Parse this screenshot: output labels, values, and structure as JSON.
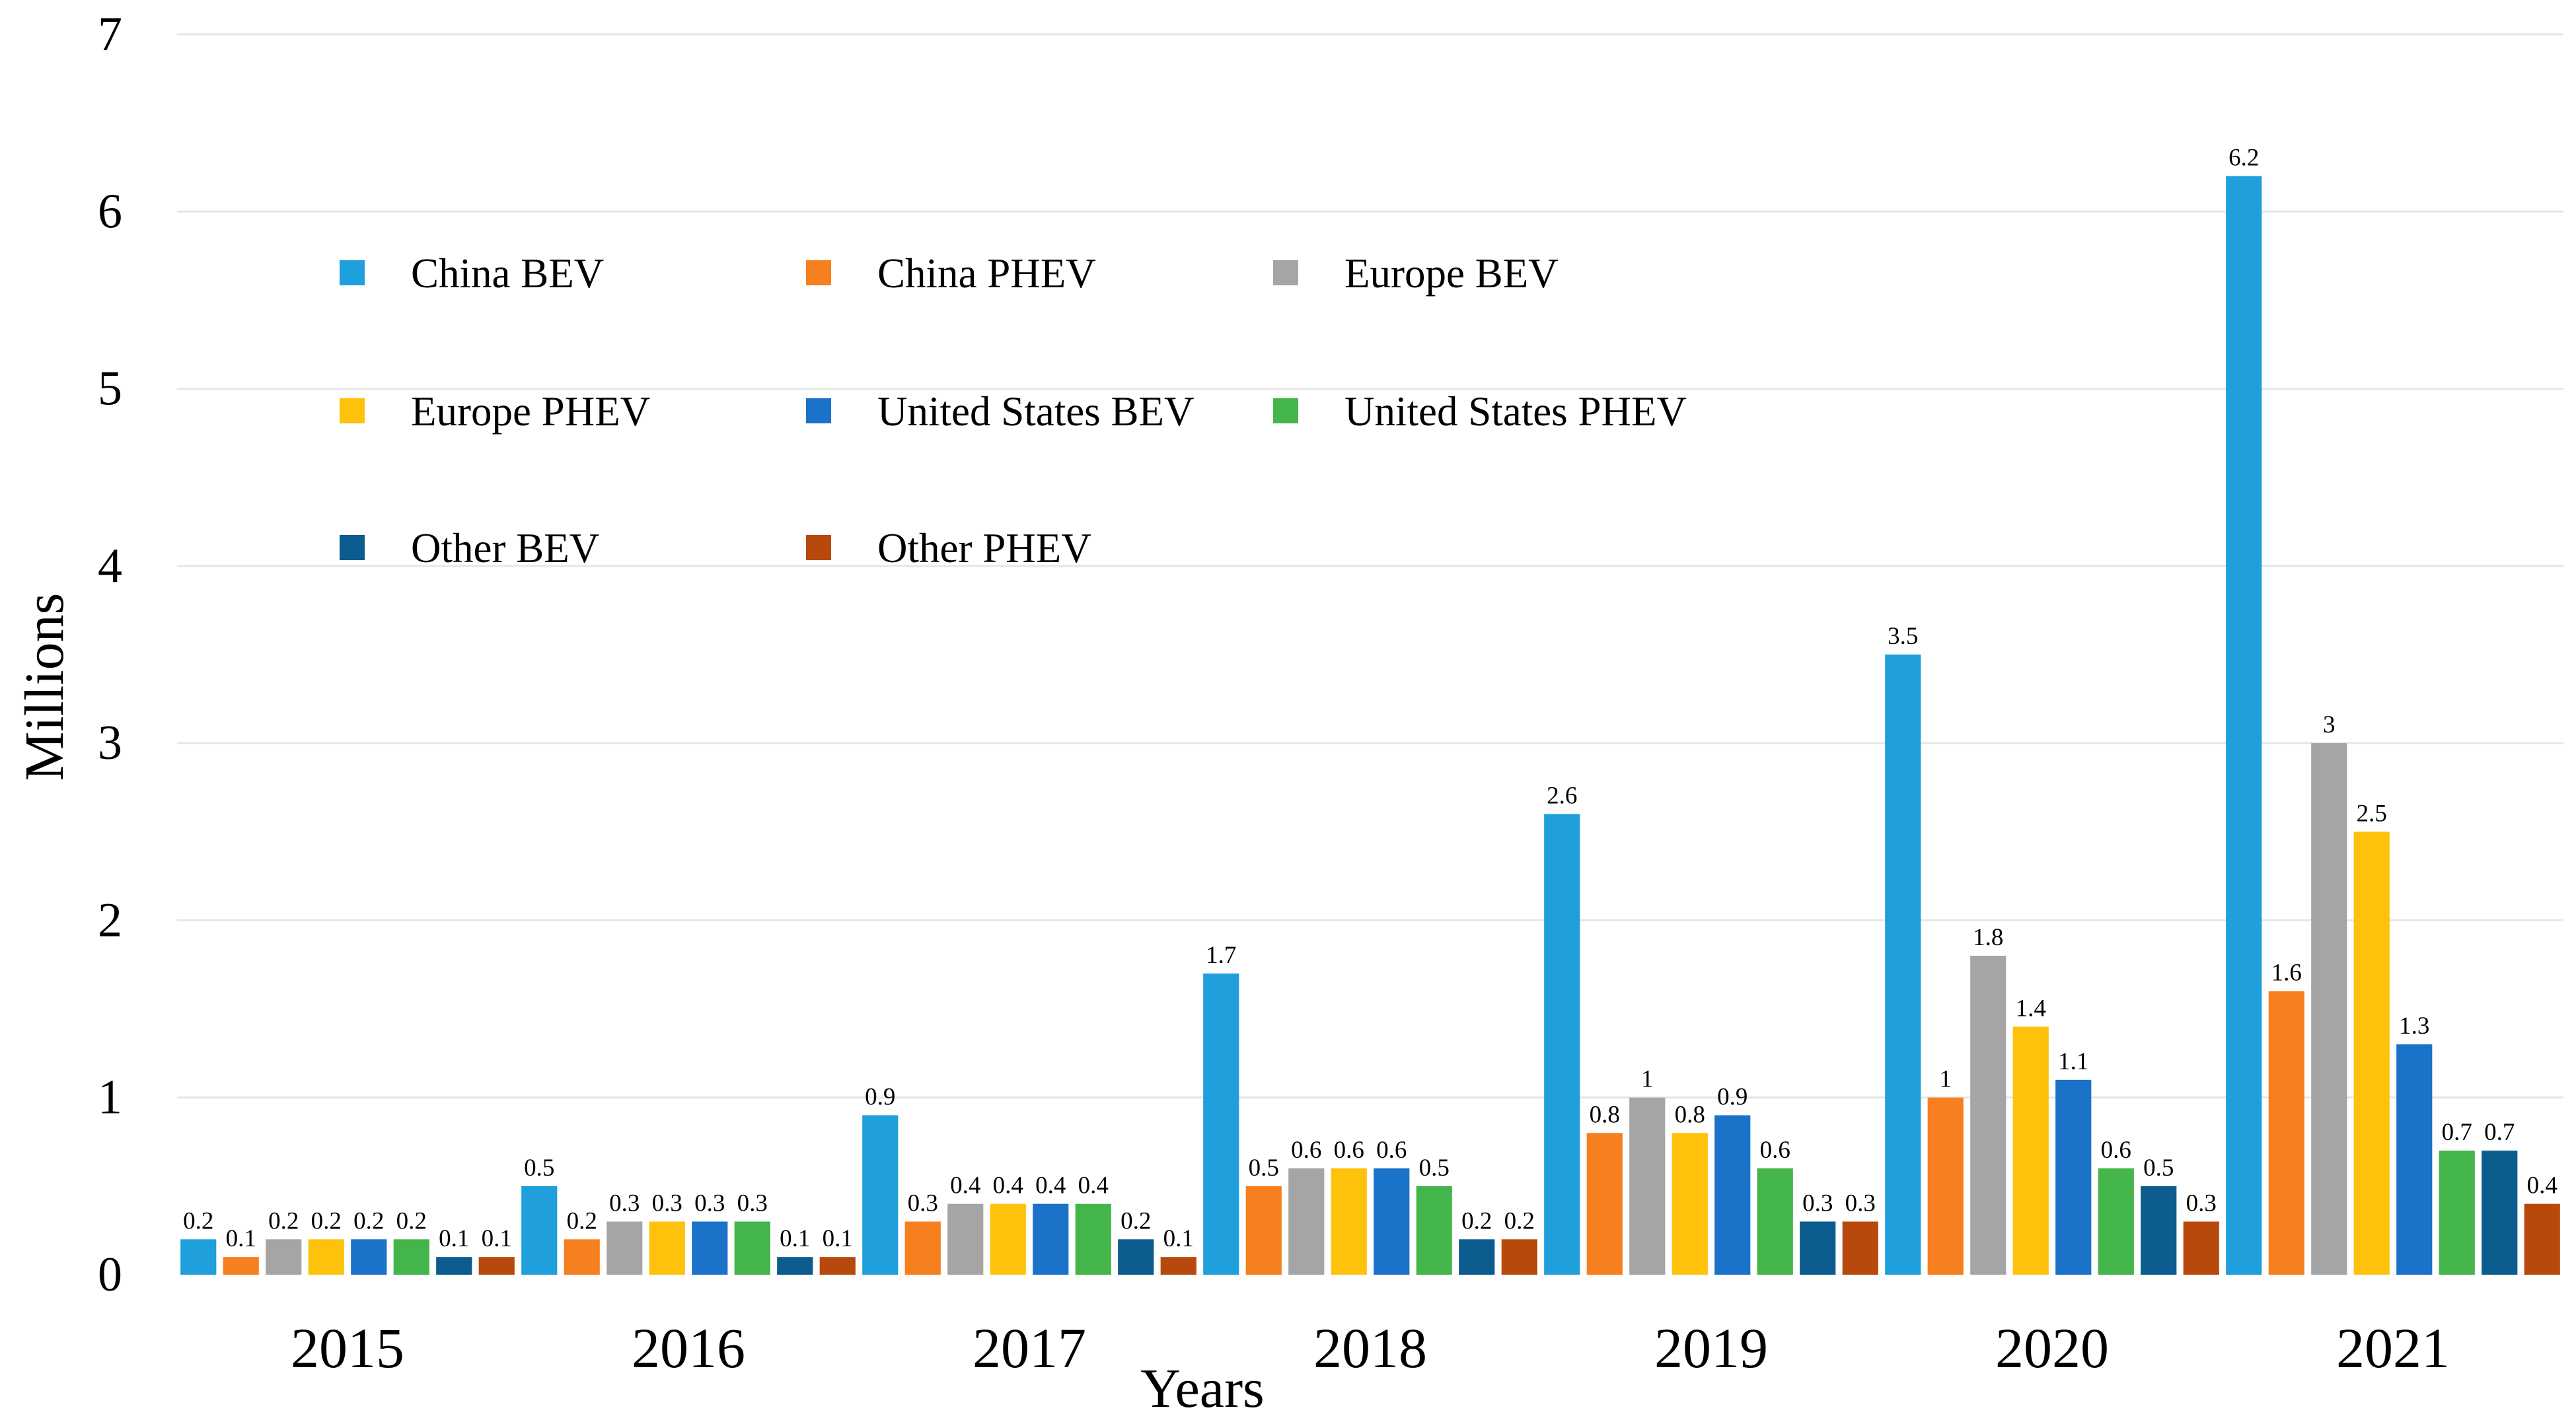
{
  "chart_data": {
    "type": "bar",
    "title": "",
    "xlabel": "Years",
    "ylabel": "Millions",
    "ylim": [
      0,
      7
    ],
    "yticks": [
      "0",
      "1",
      "2",
      "3",
      "4",
      "5",
      "6",
      "7"
    ],
    "grid": true,
    "legend_position": "top-left, inside plot",
    "categories": [
      "2015",
      "2016",
      "2017",
      "2018",
      "2019",
      "2020",
      "2021"
    ],
    "series": [
      {
        "name": "China BEV",
        "color": "#1f9fdb",
        "values": [
          0.2,
          0.5,
          0.9,
          1.7,
          2.6,
          3.5,
          6.2
        ]
      },
      {
        "name": "China PHEV",
        "color": "#f6801f",
        "values": [
          0.1,
          0.2,
          0.3,
          0.5,
          0.8,
          1,
          1.6
        ]
      },
      {
        "name": "Europe BEV",
        "color": "#a5a5a5",
        "values": [
          0.2,
          0.3,
          0.4,
          0.6,
          1,
          1.8,
          3
        ]
      },
      {
        "name": "Europe PHEV",
        "color": "#fec20d",
        "values": [
          0.2,
          0.3,
          0.4,
          0.6,
          0.8,
          1.4,
          2.5
        ]
      },
      {
        "name": "United States BEV",
        "color": "#1b72c9",
        "values": [
          0.2,
          0.3,
          0.4,
          0.6,
          0.9,
          1.1,
          1.3
        ]
      },
      {
        "name": "United States PHEV",
        "color": "#43b54a",
        "values": [
          0.2,
          0.3,
          0.4,
          0.5,
          0.6,
          0.6,
          0.7
        ]
      },
      {
        "name": "Other BEV",
        "color": "#0c5c8f",
        "values": [
          0.1,
          0.1,
          0.2,
          0.2,
          0.3,
          0.5,
          0.7
        ]
      },
      {
        "name": "Other PHEV",
        "color": "#b8490c",
        "values": [
          0.1,
          0.1,
          0.1,
          0.2,
          0.3,
          0.3,
          0.4
        ]
      }
    ]
  }
}
